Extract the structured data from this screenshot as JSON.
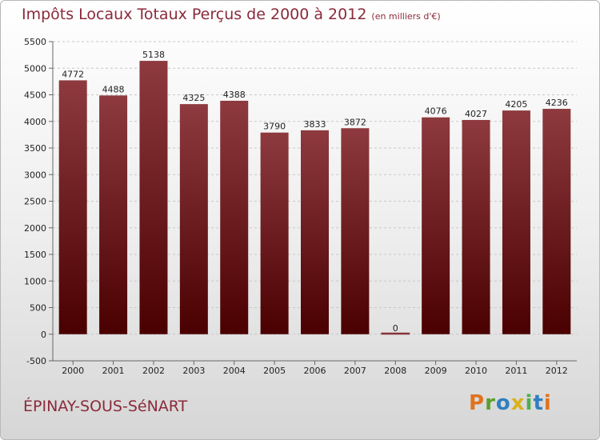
{
  "title": "Impôts Locaux Totaux Perçus de 2000 à 2012",
  "subtitle": "(en milliers d'€)",
  "commune": "ÉPINAY-SOUS-SéNART",
  "brand": {
    "text": "Proxiti",
    "letters": [
      {
        "ch": "P",
        "color": "#e0731f"
      },
      {
        "ch": "r",
        "color": "#5aa02c"
      },
      {
        "ch": "o",
        "color": "#2f7fc1"
      },
      {
        "ch": "x",
        "color": "#d9b11a"
      },
      {
        "ch": "i",
        "color": "#4caf50"
      },
      {
        "ch": "t",
        "color": "#2f7fc1"
      },
      {
        "ch": "i",
        "color": "#e0731f"
      }
    ]
  },
  "colors": {
    "bar_top": "#8e3a3f",
    "bar_bottom": "#4a0000",
    "title": "#8b2a3a"
  },
  "chart_data": {
    "type": "bar",
    "title": "Impôts Locaux Totaux Perçus de 2000 à 2012",
    "subtitle": "(en milliers d'€)",
    "categories": [
      "2000",
      "2001",
      "2002",
      "2003",
      "2004",
      "2005",
      "2006",
      "2007",
      "2008",
      "2009",
      "2010",
      "2011",
      "2012"
    ],
    "values": [
      4772,
      4488,
      5138,
      4325,
      4388,
      3790,
      3833,
      3872,
      0,
      4076,
      4027,
      4205,
      4236
    ],
    "ylim": [
      -500,
      5500
    ],
    "yticks": [
      -500,
      0,
      500,
      1000,
      1500,
      2000,
      2500,
      3000,
      3500,
      4000,
      4500,
      5000,
      5500
    ],
    "grid": true,
    "legend": "none",
    "xlabel": "",
    "ylabel": ""
  }
}
